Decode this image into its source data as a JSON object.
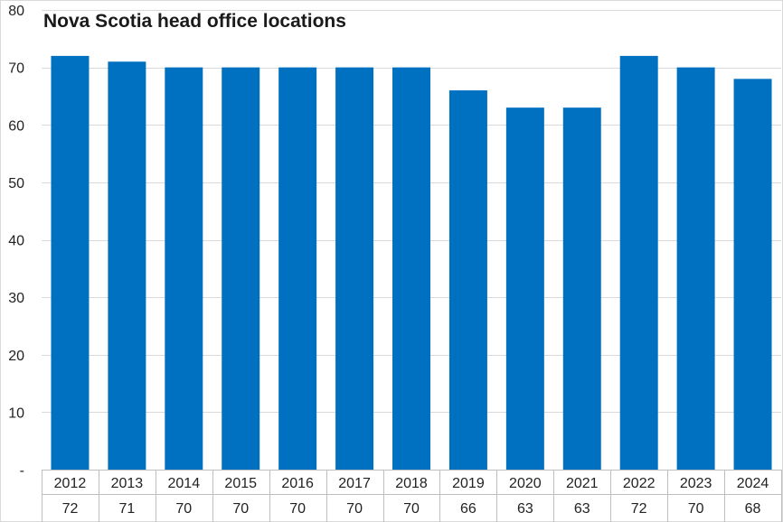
{
  "chart_data": {
    "type": "bar",
    "title": "Nova Scotia head office locations",
    "categories": [
      "2012",
      "2013",
      "2014",
      "2015",
      "2016",
      "2017",
      "2018",
      "2019",
      "2020",
      "2021",
      "2022",
      "2023",
      "2024"
    ],
    "values": [
      72,
      71,
      70,
      70,
      70,
      70,
      70,
      66,
      63,
      63,
      72,
      70,
      68
    ],
    "data_table_values": [
      "72",
      "71",
      "70",
      "70",
      "70",
      "70",
      "70",
      "66",
      "63",
      "63",
      "72",
      "70",
      "68"
    ],
    "ylim": [
      0,
      80
    ],
    "yticks": [
      0,
      10,
      20,
      30,
      40,
      50,
      60,
      70,
      80
    ],
    "ytick_labels": [
      "-",
      "10",
      "20",
      "30",
      "40",
      "50",
      "60",
      "70",
      "80"
    ],
    "grid": true,
    "legend": "none",
    "bar_color": "#0070C0",
    "grid_color": "#D9D9D9",
    "axis_color": "#BFBFBF"
  }
}
